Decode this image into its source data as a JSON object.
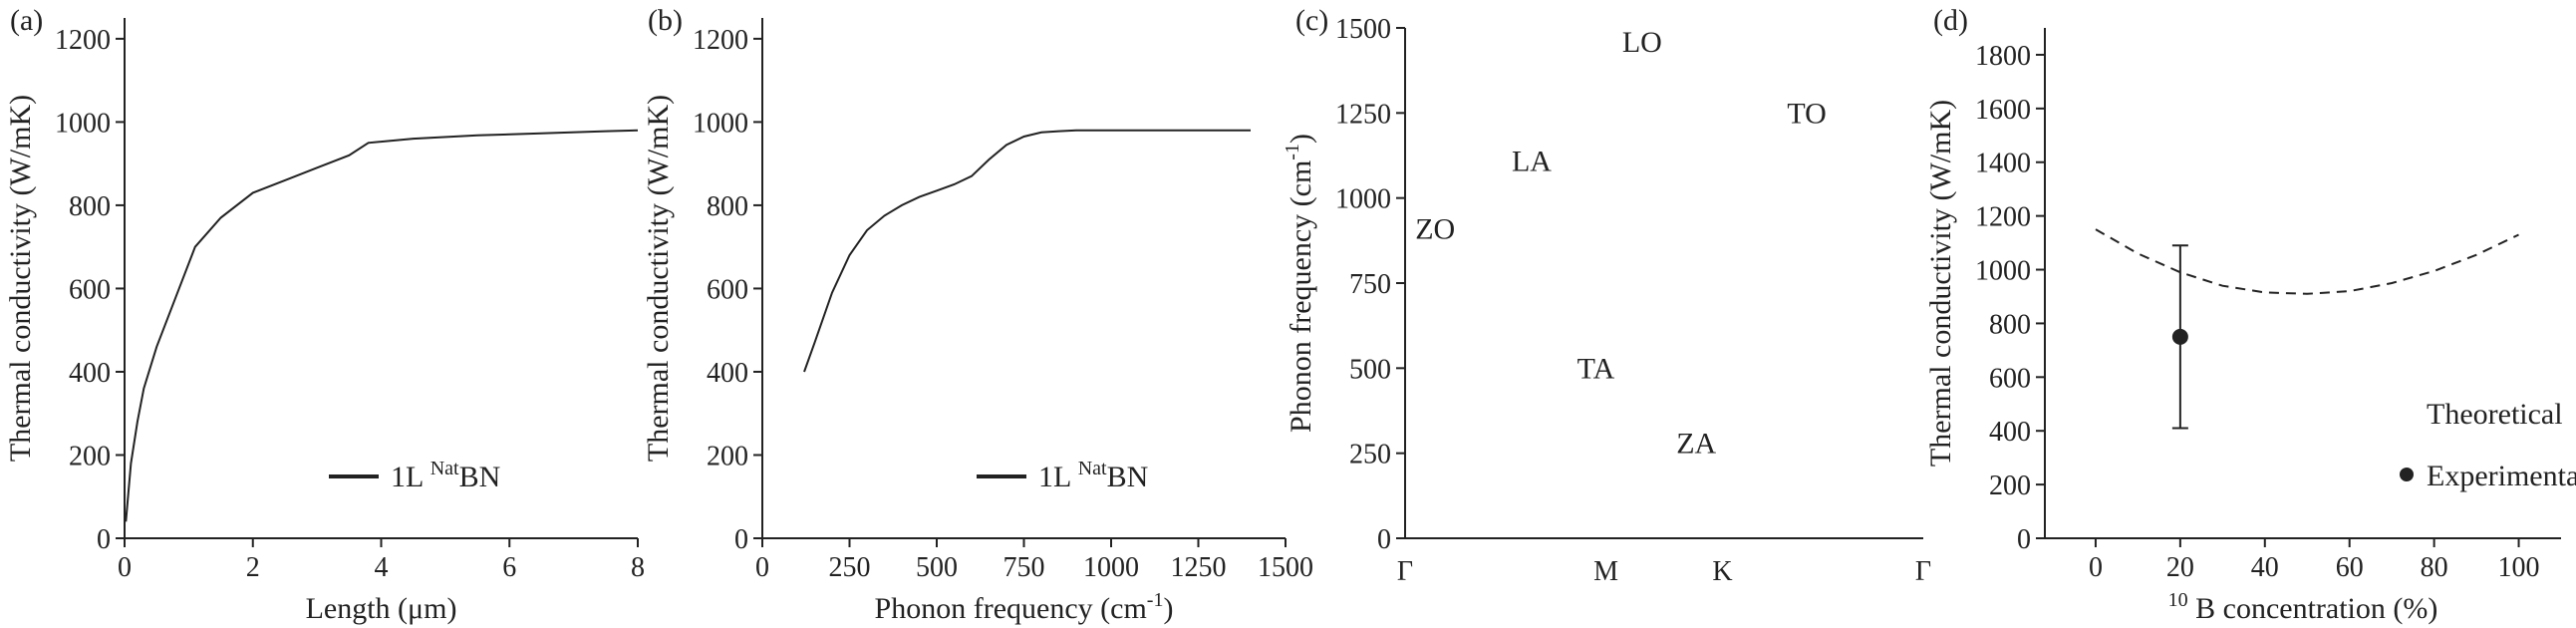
{
  "chart_data": [
    {
      "type": "line",
      "panel_label": "(a)",
      "xlabel": "Length (μm)",
      "ylabel": "Thermal conductivity (W/mK)",
      "xlim": [
        0,
        8
      ],
      "ylim": [
        0,
        1250
      ],
      "xticks": [
        0,
        2,
        4,
        6,
        8
      ],
      "yticks": [
        0,
        200,
        400,
        600,
        800,
        1000,
        1200
      ],
      "legend": {
        "position": "bottom-right",
        "text": "1L ",
        "sup": "Nat",
        "tail": "BN"
      },
      "series": [
        {
          "x": [
            0.02,
            0.1,
            0.2,
            0.3,
            0.5,
            0.8,
            1.1,
            1.5,
            2.0,
            2.5,
            3.0,
            3.5,
            3.8,
            4.5,
            5.5,
            6.5,
            7.5,
            8.0
          ],
          "y": [
            40,
            180,
            280,
            360,
            460,
            580,
            700,
            770,
            830,
            860,
            890,
            920,
            950,
            960,
            968,
            973,
            978,
            980
          ]
        }
      ]
    },
    {
      "type": "line",
      "panel_label": "(b)",
      "xlabel": "Phonon frequency (cm",
      "xlabel_sup": "-1",
      "xlabel_tail": ")",
      "ylabel": "Thermal conductivity (W/mK)",
      "xlim": [
        0,
        1500
      ],
      "ylim": [
        0,
        1250
      ],
      "xticks": [
        0,
        250,
        500,
        750,
        1000,
        1250,
        1500
      ],
      "yticks": [
        0,
        200,
        400,
        600,
        800,
        1000,
        1200
      ],
      "legend": {
        "position": "bottom-right",
        "text": "1L ",
        "sup": "Nat",
        "tail": "BN"
      },
      "series": [
        {
          "x": [
            120,
            150,
            200,
            250,
            300,
            350,
            400,
            450,
            500,
            550,
            600,
            650,
            700,
            750,
            800,
            850,
            900,
            1000,
            1100,
            1200,
            1300,
            1400
          ],
          "y": [
            400,
            470,
            590,
            680,
            740,
            775,
            800,
            820,
            835,
            850,
            870,
            910,
            945,
            965,
            975,
            978,
            980,
            980,
            980,
            980,
            980,
            980
          ]
        }
      ]
    },
    {
      "type": "scatter",
      "panel_label": "(c)",
      "ylabel": "Phonon frequency (cm",
      "ylabel_sup": "-1",
      "ylabel_tail": ")",
      "ylim": [
        0,
        1500
      ],
      "yticks": [
        0,
        250,
        500,
        750,
        1000,
        1250,
        1500
      ],
      "xtick_labels": [
        "Γ",
        "M",
        "K",
        "Γ"
      ],
      "xtick_positions": [
        0,
        1,
        1.58,
        2.58
      ],
      "branch_labels": [
        {
          "text": "LO",
          "x": 1.18,
          "y": 1430
        },
        {
          "text": "TO",
          "x": 2.0,
          "y": 1220
        },
        {
          "text": "LA",
          "x": 0.63,
          "y": 1080
        },
        {
          "text": "ZO",
          "x": 0.15,
          "y": 880
        },
        {
          "text": "TA",
          "x": 0.95,
          "y": 470
        },
        {
          "text": "ZA",
          "x": 1.45,
          "y": 250
        }
      ]
    },
    {
      "type": "scatter",
      "panel_label": "(d)",
      "xlabel": " B concentration (%)",
      "xlabel_sup": "10",
      "ylabel": "Thermal conductivity (W/mK)",
      "xlim": [
        -12,
        110
      ],
      "ylim": [
        0,
        1900
      ],
      "xticks": [
        0,
        20,
        40,
        60,
        80,
        100
      ],
      "yticks": [
        0,
        200,
        400,
        600,
        800,
        1000,
        1200,
        1400,
        1600,
        1800
      ],
      "legend": {
        "position": "bottom-right",
        "entries": [
          "Theoretical",
          "Experimental"
        ]
      },
      "series": [
        {
          "name": "Theoretical",
          "style": "dashed-line",
          "x": [
            0,
            10,
            20,
            30,
            40,
            50,
            60,
            70,
            80,
            90,
            100
          ],
          "y": [
            1150,
            1060,
            990,
            940,
            915,
            910,
            920,
            950,
            995,
            1055,
            1130
          ]
        },
        {
          "name": "Experimental",
          "style": "point-errorbar",
          "x": [
            20
          ],
          "y": [
            750
          ],
          "yerr_low": [
            410
          ],
          "yerr_high": [
            1090
          ]
        }
      ]
    }
  ]
}
